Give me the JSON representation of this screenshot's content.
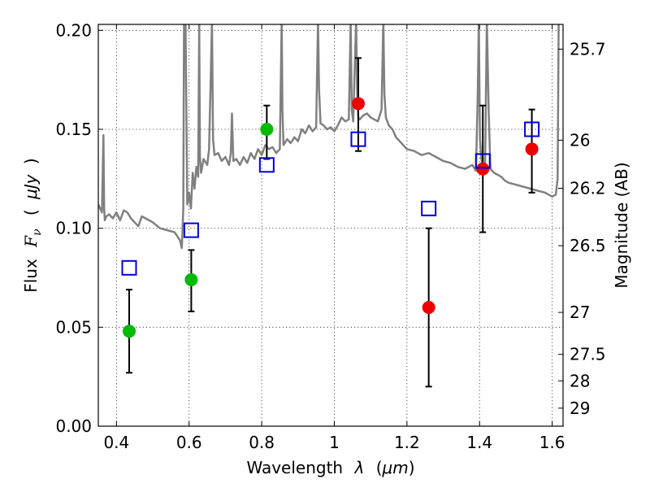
{
  "chart_data": {
    "type": "scatter",
    "xlabel_text": "Wavelength",
    "xlabel_symbol": "λ",
    "xlabel_unit_open": "(",
    "xlabel_unit": "μm",
    "xlabel_unit_close": ")",
    "ylabel_text": "Flux",
    "ylabel_symbol": "F",
    "ylabel_subscript": "ν",
    "ylabel_unit_open": "(",
    "ylabel_unit": "μJy",
    "ylabel_unit_close": ")",
    "y2label": "Magnitude (AB)",
    "xlim": [
      0.35,
      1.63
    ],
    "ylim": [
      0.0,
      0.203
    ],
    "xticks": [
      0.4,
      0.6,
      0.8,
      1.0,
      1.2,
      1.4,
      1.6
    ],
    "xtick_labels": [
      "0.4",
      "0.6",
      "0.8",
      "1",
      "1.2",
      "1.4",
      "1.6"
    ],
    "yticks": [
      0.0,
      0.05,
      0.1,
      0.15,
      0.2
    ],
    "ytick_labels": [
      "0.00",
      "0.05",
      "0.10",
      "0.15",
      "0.20"
    ],
    "y2_ticks": [
      {
        "label": "25.7",
        "flux": 0.1905
      },
      {
        "label": "26",
        "flux": 0.1445
      },
      {
        "label": "26.2",
        "flux": 0.1202
      },
      {
        "label": "26.5",
        "flux": 0.0912
      },
      {
        "label": "27",
        "flux": 0.0575
      },
      {
        "label": "27.5",
        "flux": 0.0363
      },
      {
        "label": "28",
        "flux": 0.0229
      },
      {
        "label": "29",
        "flux": 0.0091
      }
    ],
    "grid": true,
    "series": [
      {
        "marker": "circle",
        "color": "#00bb00",
        "points": [
          {
            "x": 0.435,
            "y": 0.048,
            "err_lo": 0.027,
            "err_hi": 0.069
          },
          {
            "x": 0.606,
            "y": 0.074,
            "err_lo": 0.058,
            "err_hi": 0.089
          },
          {
            "x": 0.814,
            "y": 0.15,
            "err_lo": 0.135,
            "err_hi": 0.162
          }
        ]
      },
      {
        "marker": "circle",
        "color": "#ee0000",
        "points": [
          {
            "x": 1.066,
            "y": 0.163,
            "err_lo": 0.139,
            "err_hi": 0.186
          },
          {
            "x": 1.26,
            "y": 0.06,
            "err_lo": 0.02,
            "err_hi": 0.1
          },
          {
            "x": 1.409,
            "y": 0.13,
            "err_lo": 0.098,
            "err_hi": 0.162
          },
          {
            "x": 1.544,
            "y": 0.14,
            "err_lo": 0.118,
            "err_hi": 0.16
          }
        ]
      },
      {
        "marker": "open-square",
        "color": "#0000dd",
        "points": [
          {
            "x": 0.435,
            "y": 0.08
          },
          {
            "x": 0.606,
            "y": 0.099
          },
          {
            "x": 0.814,
            "y": 0.132
          },
          {
            "x": 1.066,
            "y": 0.145
          },
          {
            "x": 1.26,
            "y": 0.11
          },
          {
            "x": 1.409,
            "y": 0.134
          },
          {
            "x": 1.544,
            "y": 0.15
          }
        ]
      }
    ],
    "spectrum": {
      "color": "#808080",
      "x": [
        0.35,
        0.36,
        0.364,
        0.366,
        0.368,
        0.372,
        0.38,
        0.39,
        0.4,
        0.41,
        0.42,
        0.43,
        0.44,
        0.45,
        0.46,
        0.47,
        0.48,
        0.49,
        0.5,
        0.52,
        0.54,
        0.56,
        0.575,
        0.58,
        0.584,
        0.586,
        0.59,
        0.595,
        0.6,
        0.605,
        0.61,
        0.615,
        0.62,
        0.625,
        0.628,
        0.63,
        0.633,
        0.64,
        0.65,
        0.655,
        0.66,
        0.663,
        0.666,
        0.67,
        0.68,
        0.69,
        0.7,
        0.71,
        0.715,
        0.718,
        0.722,
        0.73,
        0.74,
        0.75,
        0.76,
        0.77,
        0.78,
        0.79,
        0.8,
        0.81,
        0.82,
        0.83,
        0.84,
        0.85,
        0.855,
        0.857,
        0.86,
        0.87,
        0.88,
        0.89,
        0.9,
        0.91,
        0.92,
        0.93,
        0.94,
        0.95,
        0.955,
        0.958,
        0.962,
        0.97,
        0.98,
        0.99,
        1.0,
        1.01,
        1.02,
        1.03,
        1.04,
        1.045,
        1.048,
        1.052,
        1.06,
        1.063,
        1.066,
        1.07,
        1.08,
        1.09,
        1.1,
        1.11,
        1.12,
        1.13,
        1.135,
        1.138,
        1.142,
        1.15,
        1.16,
        1.17,
        1.18,
        1.2,
        1.22,
        1.24,
        1.26,
        1.28,
        1.3,
        1.32,
        1.34,
        1.36,
        1.38,
        1.39,
        1.395,
        1.398,
        1.401,
        1.405,
        1.41,
        1.415,
        1.42,
        1.425,
        1.43,
        1.44,
        1.45,
        1.46,
        1.47,
        1.48,
        1.5,
        1.52,
        1.54,
        1.56,
        1.58,
        1.6,
        1.61,
        1.615,
        1.618,
        1.62,
        1.63
      ],
      "y": [
        0.112,
        0.108,
        0.147,
        0.11,
        0.104,
        0.106,
        0.107,
        0.105,
        0.108,
        0.104,
        0.109,
        0.108,
        0.105,
        0.103,
        0.101,
        0.106,
        0.105,
        0.104,
        0.103,
        0.1,
        0.099,
        0.098,
        0.094,
        0.09,
        0.11,
        0.205,
        0.205,
        0.112,
        0.118,
        0.11,
        0.128,
        0.12,
        0.131,
        0.126,
        0.205,
        0.136,
        0.128,
        0.135,
        0.132,
        0.14,
        0.178,
        0.205,
        0.145,
        0.137,
        0.138,
        0.134,
        0.136,
        0.132,
        0.138,
        0.158,
        0.134,
        0.135,
        0.132,
        0.136,
        0.133,
        0.138,
        0.135,
        0.14,
        0.137,
        0.142,
        0.14,
        0.141,
        0.138,
        0.14,
        0.205,
        0.16,
        0.142,
        0.145,
        0.143,
        0.146,
        0.144,
        0.15,
        0.148,
        0.152,
        0.149,
        0.151,
        0.205,
        0.17,
        0.153,
        0.152,
        0.15,
        0.151,
        0.149,
        0.152,
        0.156,
        0.154,
        0.155,
        0.205,
        0.16,
        0.154,
        0.205,
        0.168,
        0.156,
        0.155,
        0.157,
        0.158,
        0.156,
        0.155,
        0.154,
        0.16,
        0.205,
        0.168,
        0.156,
        0.152,
        0.15,
        0.146,
        0.144,
        0.14,
        0.139,
        0.137,
        0.138,
        0.136,
        0.134,
        0.133,
        0.131,
        0.13,
        0.132,
        0.129,
        0.168,
        0.205,
        0.145,
        0.135,
        0.13,
        0.128,
        0.205,
        0.16,
        0.13,
        0.128,
        0.127,
        0.126,
        0.124,
        0.123,
        0.122,
        0.121,
        0.12,
        0.119,
        0.118,
        0.116,
        0.117,
        0.125,
        0.205,
        0.205,
        0.205
      ]
    }
  }
}
